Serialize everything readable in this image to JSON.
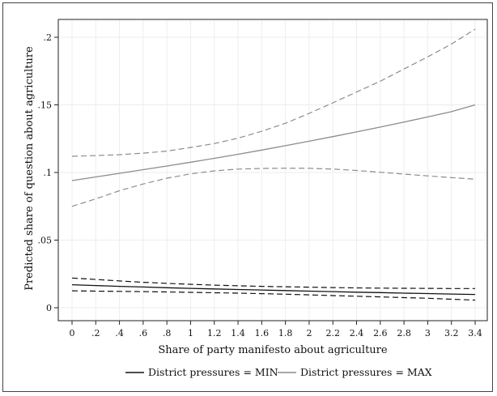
{
  "chart_data": {
    "type": "line",
    "title": "",
    "xlabel": "Share of party manifesto about agriculture",
    "ylabel": "Predicted share of question about agriculture",
    "xlim": [
      0,
      3.4
    ],
    "ylim": [
      0,
      0.2
    ],
    "xticks": [
      0,
      0.2,
      0.4,
      0.6,
      0.8,
      1.0,
      1.2,
      1.4,
      1.6,
      1.8,
      2.0,
      2.2,
      2.4,
      2.6,
      2.8,
      3.0,
      3.2,
      3.4
    ],
    "xtick_labels": [
      "0",
      ".2",
      ".4",
      ".6",
      ".8",
      "1",
      "1.2",
      "1.4",
      "1.6",
      "1.8",
      "2",
      "2.2",
      "2.4",
      "2.6",
      "2.8",
      "3",
      "3.2",
      "3.4"
    ],
    "yticks": [
      0,
      0.05,
      0.1,
      0.15,
      0.2
    ],
    "ytick_labels": [
      "0",
      ".05",
      ".1",
      ".15",
      ".2"
    ],
    "grid": true,
    "legend_position": "bottom",
    "x": [
      0,
      0.2,
      0.4,
      0.6,
      0.8,
      1.0,
      1.2,
      1.4,
      1.6,
      1.8,
      2.0,
      2.2,
      2.4,
      2.6,
      2.8,
      3.0,
      3.2,
      3.4
    ],
    "series": [
      {
        "name": "District pressures = MIN",
        "color": "#111111",
        "estimate": [
          0.017,
          0.0164,
          0.0158,
          0.0153,
          0.0148,
          0.0143,
          0.0139,
          0.0135,
          0.0131,
          0.0127,
          0.0123,
          0.0119,
          0.0115,
          0.0112,
          0.0108,
          0.0105,
          0.0101,
          0.0098
        ],
        "ci_upper": [
          0.022,
          0.0209,
          0.0198,
          0.0188,
          0.018,
          0.0173,
          0.0167,
          0.0162,
          0.0158,
          0.0155,
          0.0152,
          0.0149,
          0.0147,
          0.0145,
          0.0144,
          0.0143,
          0.0142,
          0.0142
        ],
        "ci_lower": [
          0.0125,
          0.0123,
          0.0121,
          0.0119,
          0.0117,
          0.0114,
          0.0111,
          0.0108,
          0.0104,
          0.01,
          0.0095,
          0.009,
          0.0085,
          0.008,
          0.0075,
          0.007,
          0.0063,
          0.0056
        ]
      },
      {
        "name": "District pressures = MAX",
        "color": "#8c8c8c",
        "estimate": [
          0.094,
          0.0967,
          0.0994,
          0.1021,
          0.1048,
          0.1076,
          0.1105,
          0.1135,
          0.1166,
          0.1198,
          0.1231,
          0.1265,
          0.13,
          0.1336,
          0.1373,
          0.1411,
          0.145,
          0.15
        ],
        "ci_upper": [
          0.112,
          0.1125,
          0.1132,
          0.1143,
          0.1158,
          0.1185,
          0.1214,
          0.1254,
          0.1305,
          0.1364,
          0.1437,
          0.1515,
          0.1595,
          0.1675,
          0.1765,
          0.1855,
          0.195,
          0.206
        ],
        "ci_lower": [
          0.075,
          0.0805,
          0.0865,
          0.0915,
          0.0958,
          0.099,
          0.1012,
          0.1025,
          0.103,
          0.1032,
          0.1031,
          0.1025,
          0.1015,
          0.1002,
          0.0988,
          0.0975,
          0.0962,
          0.095
        ]
      }
    ]
  }
}
